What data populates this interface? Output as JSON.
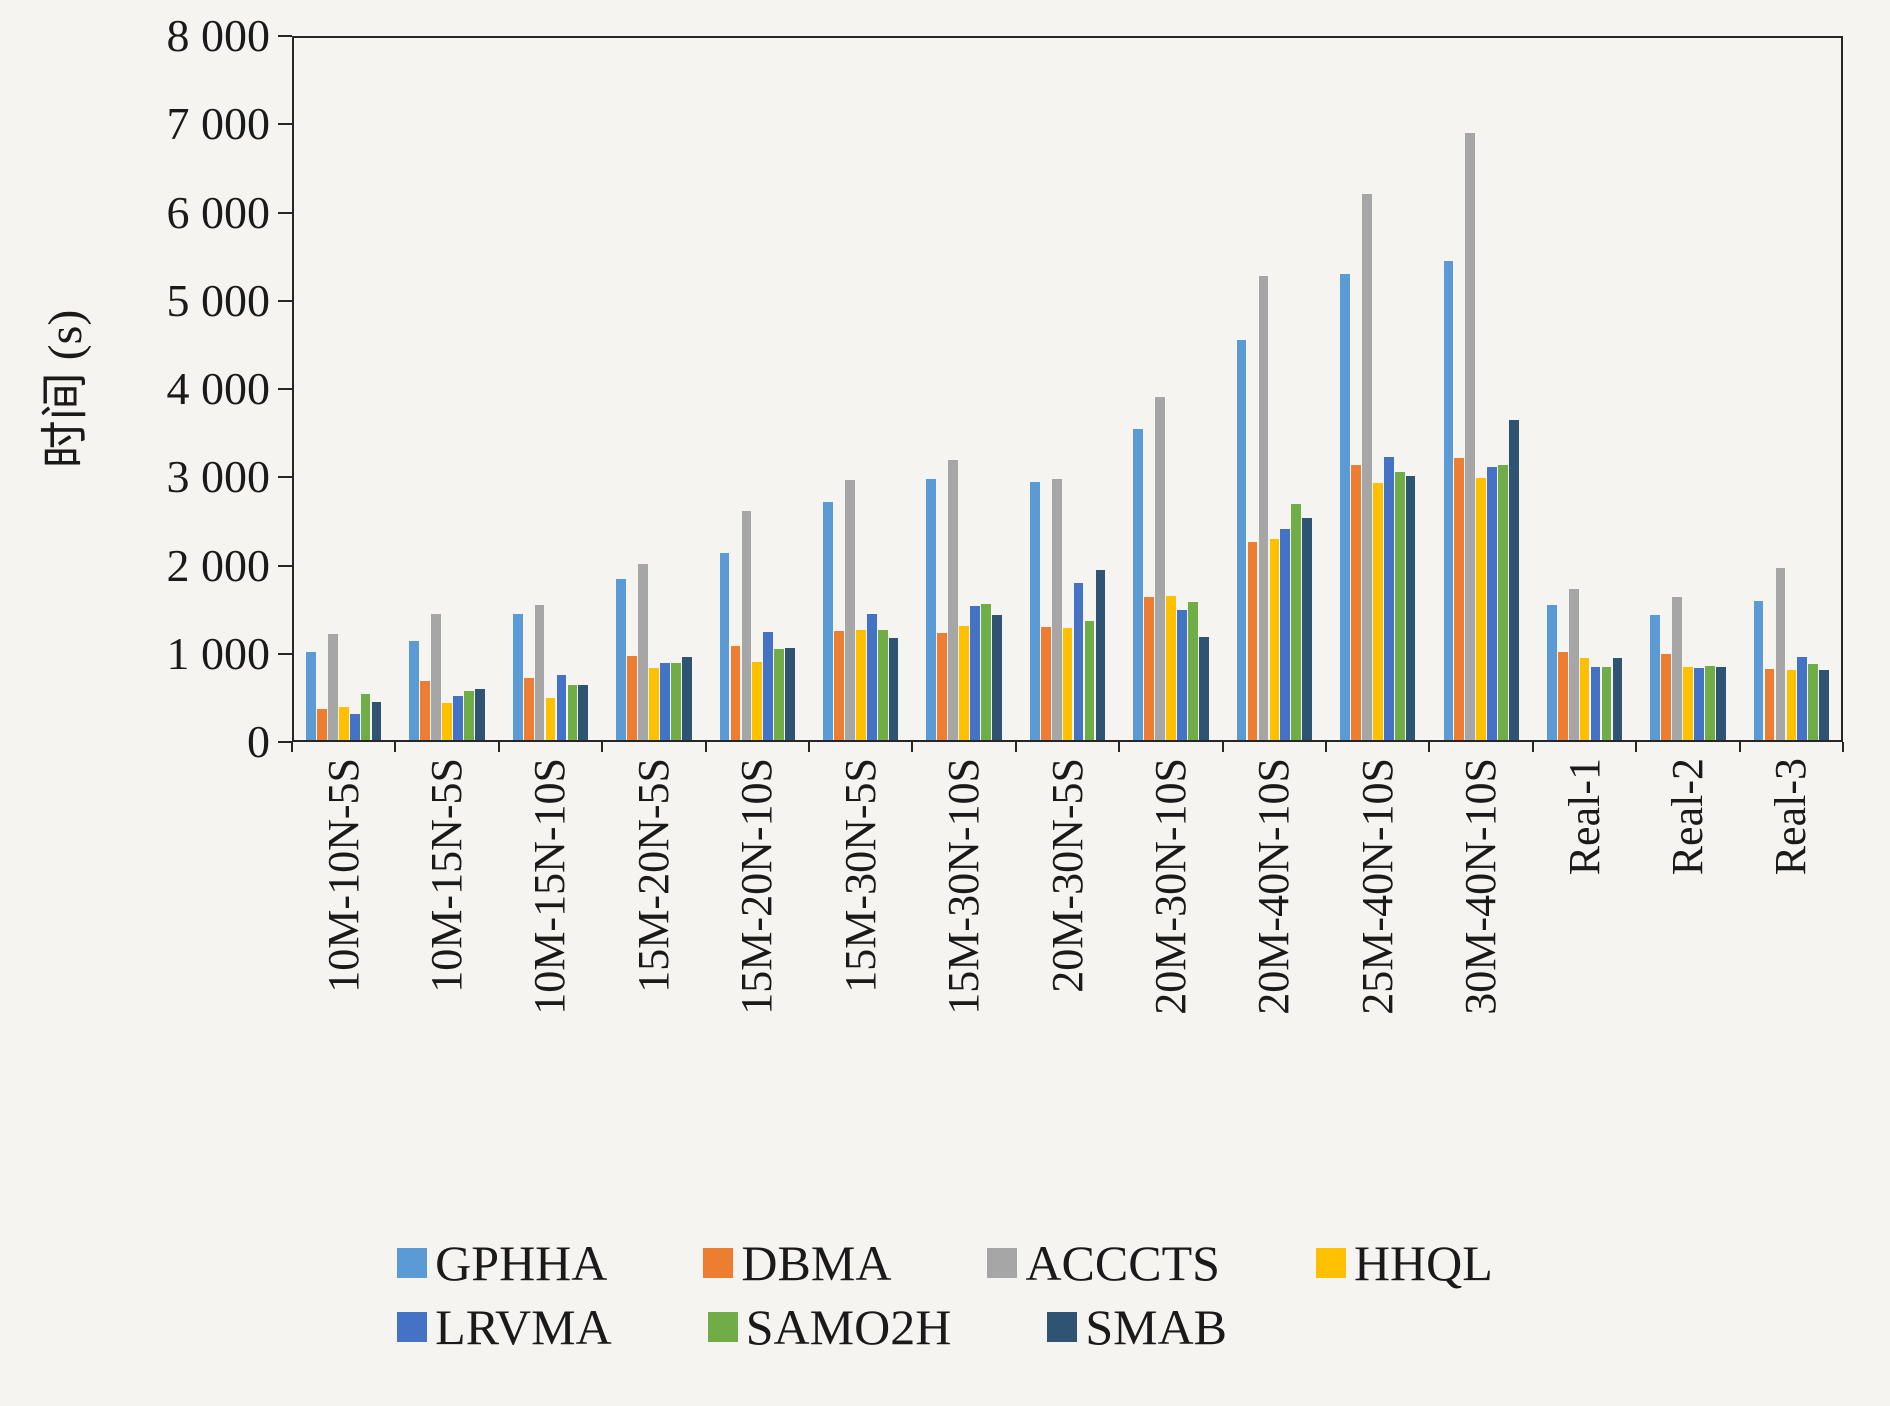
{
  "chart_data": {
    "type": "bar",
    "title": "",
    "ylabel": "时间 (s)",
    "xlabel": "",
    "ylim": [
      0,
      8000
    ],
    "ytick_step": 1000,
    "ytick_labels": [
      "0",
      "1 000",
      "2 000",
      "3 000",
      "4 000",
      "5 000",
      "6 000",
      "7 000",
      "8 000"
    ],
    "grid": false,
    "legend_position": "bottom",
    "categories": [
      "10M-10N-5S",
      "10M-15N-5S",
      "10M-15N-10S",
      "15M-20N-5S",
      "15M-20N-10S",
      "15M-30N-5S",
      "15M-30N-10S",
      "20M-30N-5S",
      "20M-30N-10S",
      "20M-40N-10S",
      "25M-40N-10S",
      "30M-40N-10S",
      "Real-1",
      "Real-2",
      "Real-3"
    ],
    "series": [
      {
        "name": "GPHHA",
        "color": "#5B9BD5",
        "values": [
          1000,
          1120,
          1430,
          1830,
          2120,
          2700,
          2970,
          2930,
          3530,
          4550,
          5300,
          5440,
          1530,
          1420,
          1580
        ]
      },
      {
        "name": "DBMA",
        "color": "#ED7D31",
        "values": [
          350,
          670,
          700,
          960,
          1070,
          1240,
          1220,
          1280,
          1620,
          2250,
          3130,
          3200,
          1000,
          980,
          810
        ]
      },
      {
        "name": "ACCCTS",
        "color": "#A6A6A6",
        "values": [
          1210,
          1430,
          1530,
          2000,
          2600,
          2950,
          3180,
          2970,
          3900,
          5270,
          6200,
          6900,
          1720,
          1620,
          1950
        ]
      },
      {
        "name": "HHQL",
        "color": "#FFC000",
        "values": [
          380,
          420,
          480,
          820,
          890,
          1250,
          1300,
          1270,
          1640,
          2280,
          2920,
          2980,
          930,
          830,
          800
        ]
      },
      {
        "name": "LRVMA",
        "color": "#4472C4",
        "values": [
          300,
          500,
          740,
          880,
          1230,
          1430,
          1520,
          1780,
          1480,
          2400,
          3220,
          3100,
          830,
          820,
          940
        ]
      },
      {
        "name": "SAMO2H",
        "color": "#70AD47",
        "values": [
          520,
          560,
          620,
          880,
          1030,
          1250,
          1550,
          1350,
          1570,
          2680,
          3050,
          3130,
          830,
          840,
          860
        ]
      },
      {
        "name": "SMAB",
        "color": "#2F5373",
        "values": [
          430,
          580,
          630,
          940,
          1050,
          1160,
          1420,
          1930,
          1170,
          2520,
          3000,
          3640,
          930,
          830,
          790
        ]
      }
    ],
    "legend_rows": [
      [
        0,
        1,
        2,
        3
      ],
      [
        4,
        5,
        6
      ]
    ]
  }
}
